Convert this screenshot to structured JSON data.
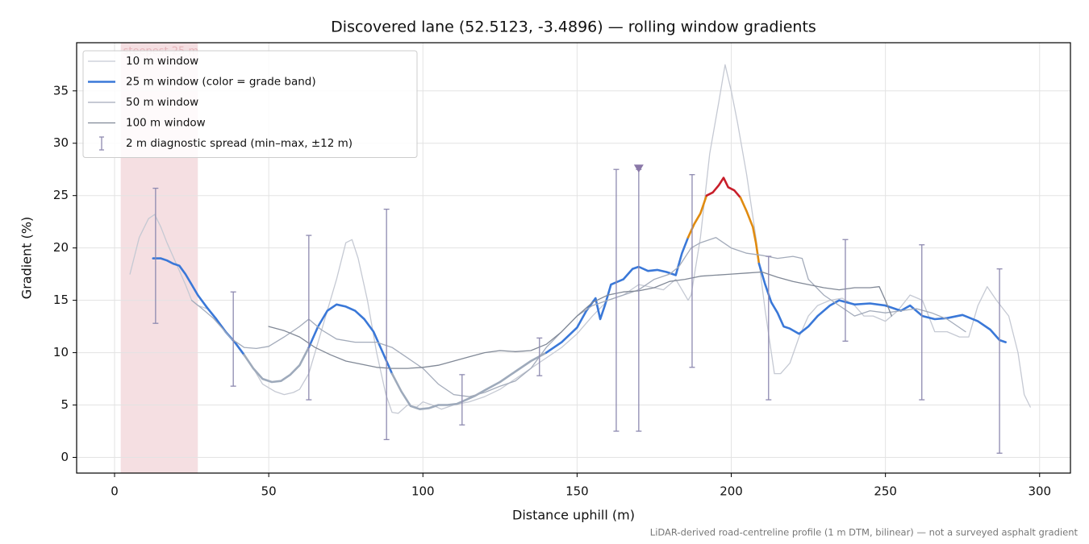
{
  "chart_data": {
    "type": "line",
    "title": "Discovered lane (52.5123, -3.4896) — rolling window gradients",
    "xlabel": "Distance uphill (m)",
    "ylabel": "Gradient (%)",
    "footnote": "LiDAR-derived road-centreline profile (1 m DTM, bilinear) — not a surveyed asphalt gradient",
    "xlim": [
      -12.3,
      310
    ],
    "ylim": [
      -1.5,
      39.6
    ],
    "xticks": [
      0,
      50,
      100,
      150,
      200,
      250,
      300
    ],
    "yticks": [
      0,
      5,
      10,
      15,
      20,
      25,
      30,
      35
    ],
    "grid": true,
    "legend": "upper left",
    "highlight": {
      "xmin": 2,
      "xmax": 27,
      "label": "steepest 25 m",
      "color": "#d98a94"
    },
    "series": [
      {
        "name": "10 m window",
        "color": "#c5c9d3",
        "width": 1.3,
        "x": [
          5,
          8,
          11,
          13,
          15,
          17,
          20,
          23,
          25,
          27,
          30,
          35,
          40,
          45,
          48,
          52,
          55,
          58,
          60,
          63,
          65,
          68,
          72,
          75,
          77,
          79,
          82,
          85,
          88,
          90,
          92,
          95,
          98,
          100,
          103,
          106,
          110,
          115,
          120,
          125,
          130,
          135,
          140,
          145,
          150,
          155,
          160,
          165,
          170,
          175,
          178,
          180,
          182,
          184,
          186,
          187,
          190,
          193,
          196,
          198,
          200,
          202,
          205,
          208,
          211,
          214,
          216,
          219,
          222,
          225,
          228,
          232,
          236,
          240,
          243,
          246,
          250,
          254,
          258,
          262,
          266,
          270,
          274,
          277,
          280,
          283,
          286,
          290,
          293,
          295,
          297
        ],
        "values": [
          17.5,
          21,
          22.8,
          23.2,
          22,
          20.5,
          18.5,
          16.5,
          15,
          14.5,
          14.2,
          12.5,
          10.5,
          8.5,
          7.0,
          6.3,
          6.0,
          6.2,
          6.5,
          8.0,
          10,
          13,
          17,
          20.5,
          20.8,
          19,
          15,
          10,
          6,
          4.3,
          4.2,
          5,
          4.8,
          5.3,
          5,
          4.6,
          5,
          5.3,
          5.8,
          6.5,
          7.5,
          8.5,
          9.5,
          10.5,
          11.8,
          13.5,
          15,
          15.5,
          16.5,
          16.2,
          16,
          16.5,
          17,
          16,
          15,
          15.5,
          21,
          29,
          34,
          37.5,
          35,
          32,
          27,
          21,
          14,
          8,
          8,
          9,
          11.5,
          13.5,
          14.5,
          15,
          15.2,
          14.5,
          13.5,
          13.5,
          13,
          14,
          15.5,
          15,
          12,
          12,
          11.5,
          11.5,
          14.5,
          16.3,
          15,
          13.5,
          10,
          6,
          4.8
        ]
      },
      {
        "name": "25 m window (color = grade band)",
        "color": "#3a78d8",
        "width": 2.6,
        "band_thresholds": [
          10,
          20,
          25
        ],
        "band_colors": [
          "#9eaabb",
          "#3a78d8",
          "#e08b10",
          "#c81e2a"
        ],
        "x": [
          12.5,
          15,
          17,
          19,
          21,
          23,
          25,
          27,
          30,
          33,
          36,
          39,
          42,
          45,
          48,
          51,
          54,
          57,
          60,
          63,
          66,
          69,
          72,
          75,
          78,
          81,
          84,
          87,
          90,
          93,
          96,
          99,
          102,
          105,
          108,
          111,
          114,
          117,
          120,
          125,
          130,
          135,
          140,
          145,
          150,
          153,
          156,
          157.5,
          159,
          161,
          165,
          168,
          170,
          173,
          176,
          179,
          182,
          184,
          186,
          188,
          190,
          192,
          194,
          196,
          197.5,
          199,
          201,
          203,
          205,
          207,
          208,
          209,
          211,
          213,
          215,
          217,
          219,
          222,
          225,
          228,
          232,
          235,
          240,
          245,
          250,
          255,
          258,
          262,
          266,
          270,
          275,
          280,
          284,
          287,
          289
        ],
        "values": [
          19,
          19,
          18.8,
          18.5,
          18.3,
          17.5,
          16.5,
          15.5,
          14.3,
          13.2,
          12,
          11,
          9.8,
          8.5,
          7.5,
          7.2,
          7.3,
          7.9,
          8.8,
          10.5,
          12.5,
          14,
          14.6,
          14.4,
          14,
          13.2,
          12,
          10,
          8,
          6.3,
          4.9,
          4.6,
          4.7,
          5,
          5,
          5.1,
          5.5,
          5.9,
          6.4,
          7.2,
          8.2,
          9.2,
          10,
          11,
          12.4,
          14,
          15.2,
          13.2,
          14.5,
          16.5,
          17,
          18,
          18.2,
          17.8,
          17.9,
          17.7,
          17.4,
          19.5,
          21,
          22.3,
          23.3,
          25.0,
          25.3,
          26,
          26.7,
          25.8,
          25.5,
          24.8,
          23.5,
          22,
          20.5,
          18.5,
          16.5,
          14.8,
          13.8,
          12.5,
          12.3,
          11.8,
          12.5,
          13.5,
          14.5,
          15,
          14.6,
          14.7,
          14.5,
          14.0,
          14.5,
          13.5,
          13.2,
          13.3,
          13.6,
          13,
          12.2,
          11.2,
          11
        ]
      },
      {
        "name": "50 m window",
        "color": "#a3abba",
        "width": 1.3,
        "x": [
          25,
          28,
          32,
          35,
          38,
          42,
          46,
          50,
          55,
          60,
          63,
          67,
          72,
          78,
          85,
          90,
          95,
          100,
          105,
          110,
          115,
          120,
          125,
          130,
          135,
          140,
          145,
          150,
          155,
          160,
          165,
          170,
          175,
          180,
          183,
          187,
          190,
          195,
          200,
          205,
          210,
          215,
          220,
          223,
          225,
          230,
          235,
          240,
          245,
          250,
          255,
          260,
          265,
          270,
          276
        ],
        "values": [
          15,
          14.3,
          13.3,
          12.3,
          11.3,
          10.5,
          10.4,
          10.6,
          11.5,
          12.5,
          13.2,
          12.2,
          11.3,
          11,
          11,
          10.5,
          9.5,
          8.5,
          7,
          6,
          5.8,
          6.2,
          6.8,
          7.3,
          8.5,
          10.5,
          12,
          13.5,
          14.5,
          15,
          15.5,
          16,
          17,
          17.5,
          18.2,
          20,
          20.5,
          21,
          20,
          19.5,
          19.3,
          19,
          19.2,
          19,
          17,
          15.5,
          14.5,
          13.5,
          14,
          13.8,
          14,
          14.2,
          13.8,
          13.2,
          12
        ]
      },
      {
        "name": "100 m window",
        "color": "#808896",
        "width": 1.3,
        "x": [
          50,
          55,
          60,
          65,
          70,
          75,
          80,
          85,
          90,
          95,
          100,
          105,
          110,
          115,
          120,
          125,
          130,
          135,
          140,
          145,
          150,
          155,
          160,
          165,
          170,
          175,
          180,
          185,
          190,
          195,
          200,
          205,
          210,
          215,
          220,
          225,
          230,
          235,
          240,
          245,
          248,
          250,
          252
        ],
        "values": [
          12.5,
          12.1,
          11.5,
          10.5,
          9.8,
          9.2,
          8.9,
          8.6,
          8.5,
          8.5,
          8.6,
          8.8,
          9.2,
          9.6,
          10.0,
          10.2,
          10.1,
          10.2,
          10.8,
          12,
          13.5,
          14.8,
          15.5,
          15.8,
          15.9,
          16.2,
          16.8,
          17.0,
          17.3,
          17.4,
          17.5,
          17.6,
          17.7,
          17.2,
          16.8,
          16.5,
          16.2,
          16.0,
          16.2,
          16.2,
          16.3,
          15,
          13.5
        ]
      }
    ],
    "spread": {
      "name": "2 m diagnostic spread (min–max, ±12 m)",
      "color": "#8e8ab0",
      "x": [
        13.3,
        38.5,
        63,
        88.2,
        112.7,
        137.8,
        162.7,
        170,
        187.3,
        212.1,
        237,
        261.8,
        287
      ],
      "min": [
        12.8,
        6.8,
        5.5,
        1.7,
        3.1,
        7.8,
        2.5,
        2.5,
        8.6,
        5.5,
        11.1,
        5.5,
        0.4
      ],
      "max": [
        25.7,
        15.8,
        21.2,
        23.7,
        7.9,
        11.4,
        27.5,
        27.5,
        27.0,
        19.2,
        20.8,
        20.3,
        18.0
      ]
    },
    "peak_marker": {
      "x": 170,
      "y": 27.5,
      "color": "#8a78a8"
    }
  }
}
